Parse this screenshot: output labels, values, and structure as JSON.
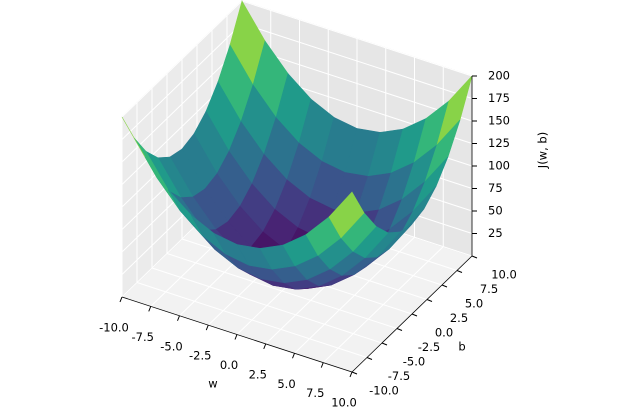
{
  "chart_data": {
    "type": "surface",
    "xlabel": "w",
    "ylabel": "b",
    "zlabel": "J(w, b)",
    "colormap": "viridis",
    "x": [
      -10,
      -8,
      -6,
      -4,
      -2,
      0,
      2,
      4,
      6,
      8,
      10
    ],
    "y": [
      -10,
      -8,
      -6,
      -4,
      -2,
      0,
      2,
      4,
      6,
      8,
      10
    ],
    "z": [
      [
        200,
        164,
        136,
        116,
        104,
        100,
        104,
        116,
        136,
        164,
        200
      ],
      [
        164,
        128,
        100,
        80,
        68,
        64,
        68,
        80,
        100,
        128,
        164
      ],
      [
        136,
        100,
        72,
        52,
        40,
        36,
        40,
        52,
        72,
        100,
        136
      ],
      [
        116,
        80,
        52,
        32,
        20,
        16,
        20,
        32,
        52,
        80,
        116
      ],
      [
        104,
        68,
        40,
        20,
        8,
        4,
        8,
        20,
        40,
        68,
        104
      ],
      [
        100,
        64,
        36,
        16,
        4,
        0,
        4,
        16,
        36,
        64,
        100
      ],
      [
        104,
        68,
        40,
        20,
        8,
        4,
        8,
        20,
        40,
        68,
        104
      ],
      [
        116,
        80,
        52,
        32,
        20,
        16,
        20,
        32,
        52,
        80,
        116
      ],
      [
        136,
        100,
        72,
        52,
        40,
        36,
        40,
        52,
        72,
        100,
        136
      ],
      [
        164,
        128,
        100,
        80,
        68,
        64,
        68,
        80,
        100,
        128,
        164
      ],
      [
        200,
        164,
        136,
        116,
        104,
        100,
        104,
        116,
        136,
        164,
        200
      ]
    ],
    "xlim": [
      -10,
      10
    ],
    "ylim": [
      -10,
      10
    ],
    "zlim": [
      0,
      200
    ],
    "xticks": [
      {
        "value": -10,
        "label": "-10.0"
      },
      {
        "value": -7.5,
        "label": "-7.5"
      },
      {
        "value": -5,
        "label": "-5.0"
      },
      {
        "value": -2.5,
        "label": "-2.5"
      },
      {
        "value": 0,
        "label": "0.0"
      },
      {
        "value": 2.5,
        "label": "2.5"
      },
      {
        "value": 5,
        "label": "5.0"
      },
      {
        "value": 7.5,
        "label": "7.5"
      },
      {
        "value": 10,
        "label": "10.0"
      }
    ],
    "yticks": [
      {
        "value": -10,
        "label": "-10.0"
      },
      {
        "value": -7.5,
        "label": "-7.5"
      },
      {
        "value": -5,
        "label": "-5.0"
      },
      {
        "value": -2.5,
        "label": "-2.5"
      },
      {
        "value": 0,
        "label": "0.0"
      },
      {
        "value": 2.5,
        "label": "2.5"
      },
      {
        "value": 5,
        "label": "5.0"
      },
      {
        "value": 7.5,
        "label": "7.5"
      },
      {
        "value": 10,
        "label": "10.0"
      }
    ],
    "zticks": [
      25,
      50,
      75,
      100,
      125,
      150,
      175,
      200
    ],
    "grid": true
  }
}
